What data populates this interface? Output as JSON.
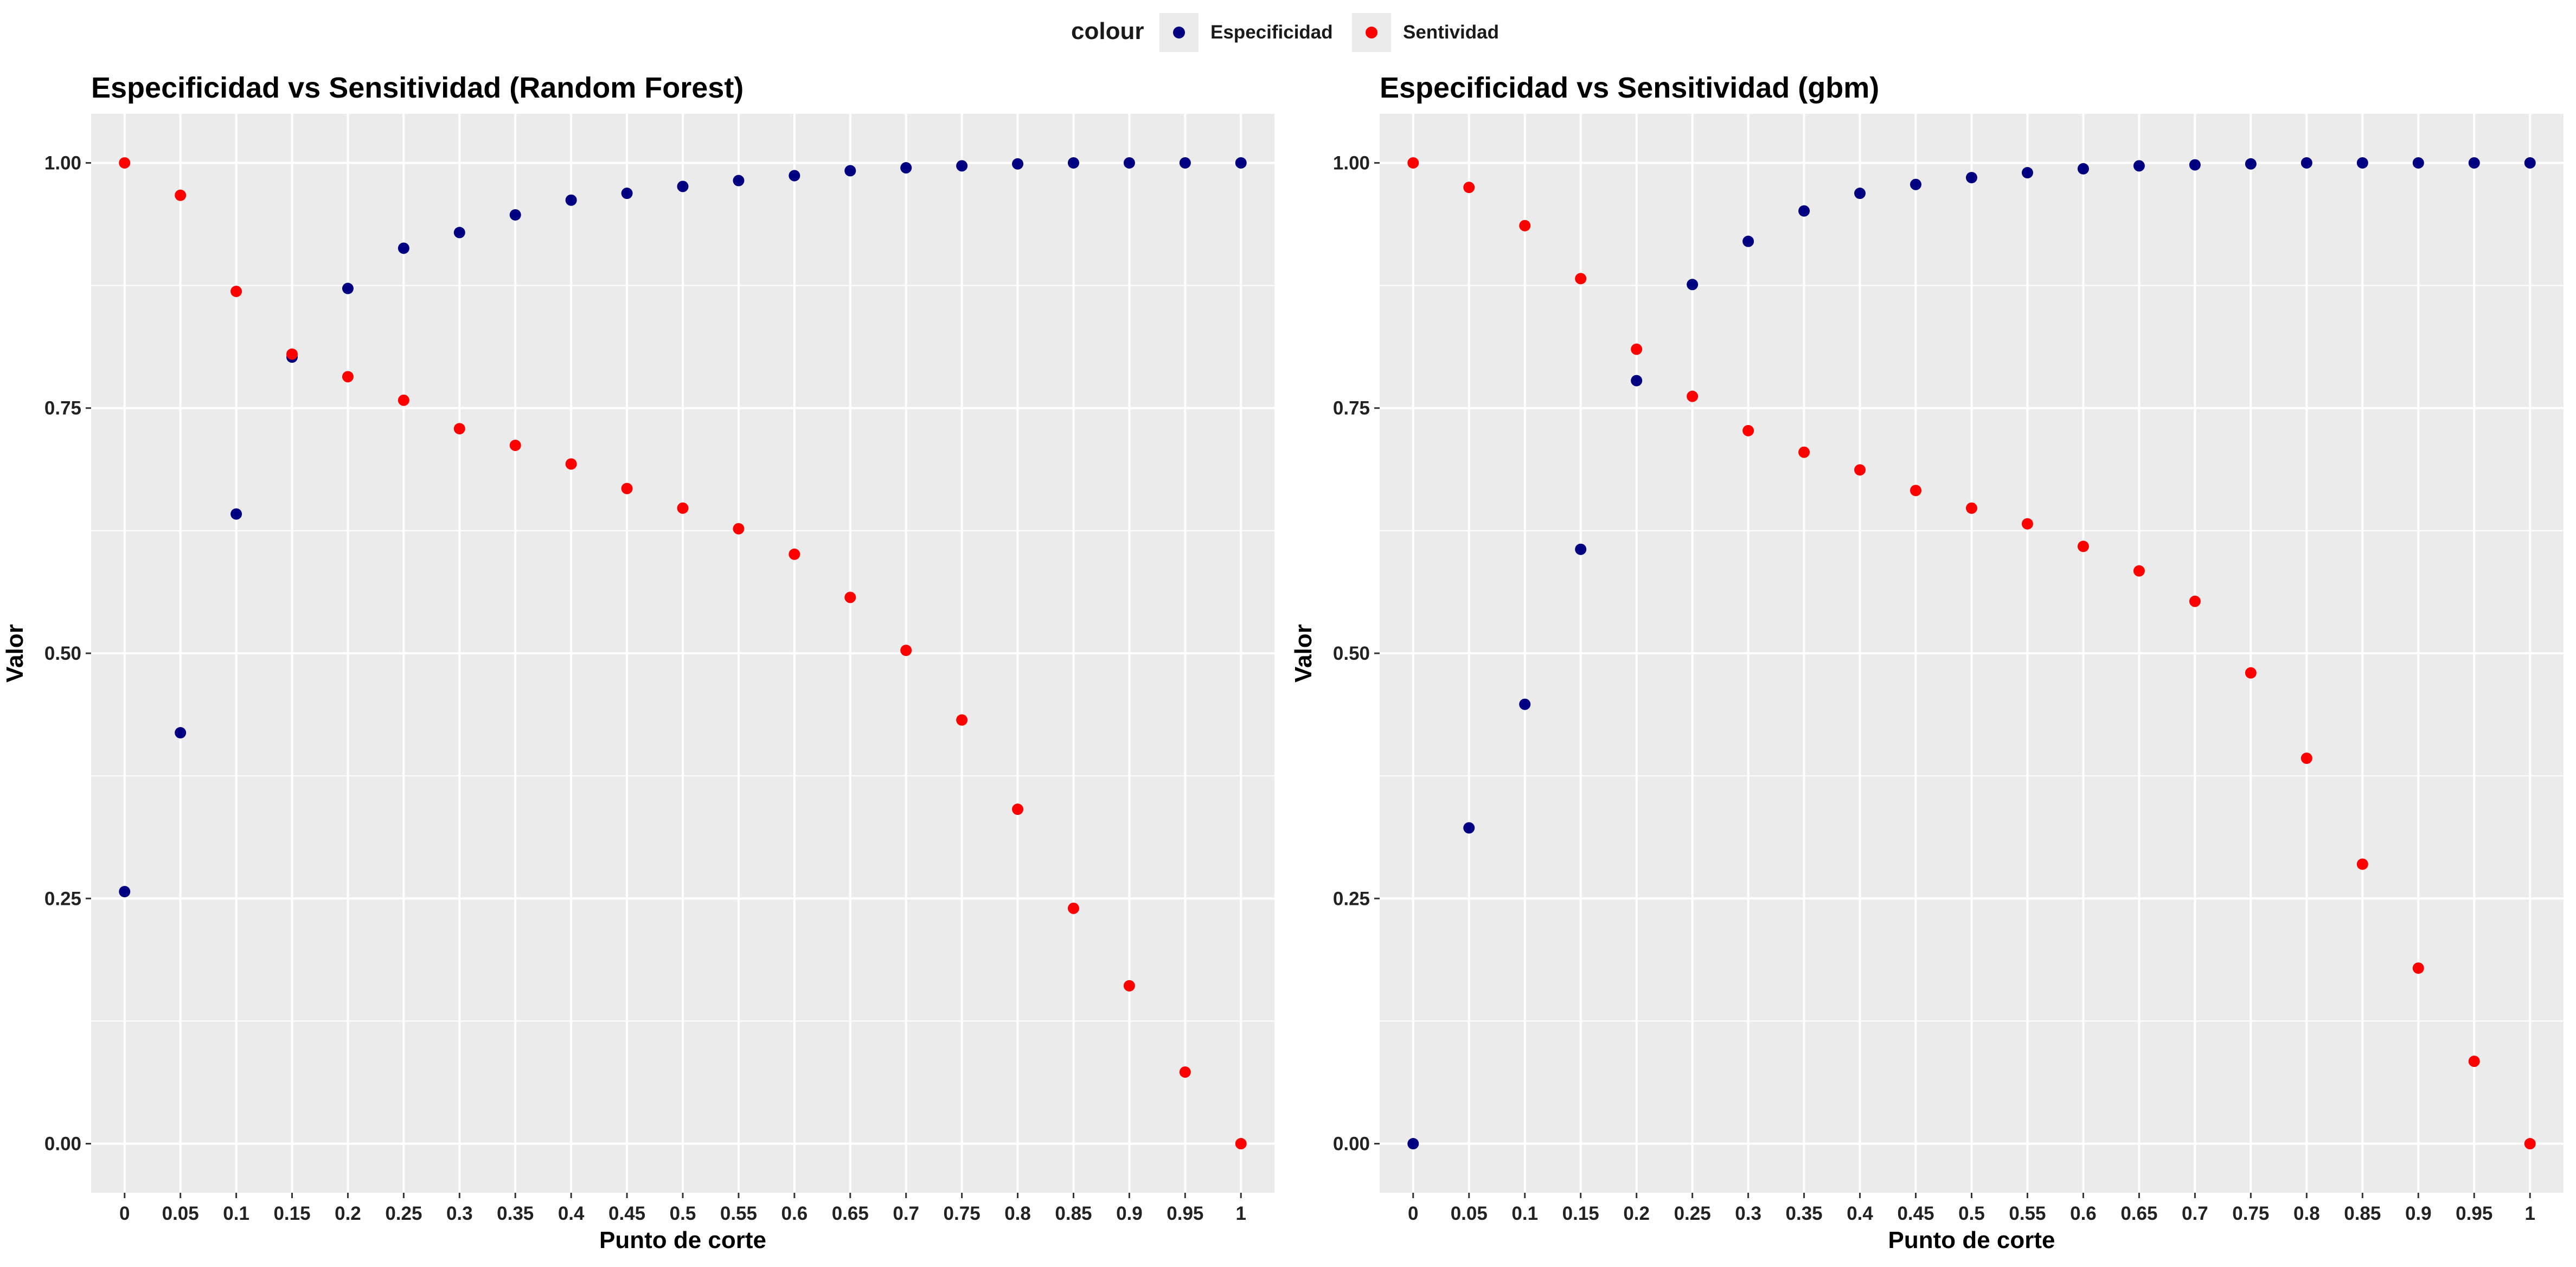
{
  "legend": {
    "title": "colour",
    "items": [
      {
        "label": "Especificidad",
        "color": "#000080"
      },
      {
        "label": "Sentividad",
        "color": "#FF0000"
      }
    ]
  },
  "chart_data": [
    {
      "type": "scatter",
      "title": "Especificidad vs Sensitividad (Random Forest)",
      "xlabel": "Punto de corte",
      "ylabel": "Valor",
      "x": [
        "0",
        "0.05",
        "0.1",
        "0.15",
        "0.2",
        "0.25",
        "0.3",
        "0.35",
        "0.4",
        "0.45",
        "0.5",
        "0.55",
        "0.6",
        "0.65",
        "0.7",
        "0.75",
        "0.8",
        "0.85",
        "0.9",
        "0.95",
        "1"
      ],
      "ylim": [
        -0.05,
        1.05
      ],
      "yticks": [
        "0.00",
        "0.25",
        "0.50",
        "0.75",
        "1.00"
      ],
      "series": [
        {
          "name": "Especificidad",
          "color": "#000080",
          "values": [
            0.257,
            0.419,
            0.642,
            0.802,
            0.872,
            0.913,
            0.929,
            0.947,
            0.962,
            0.969,
            0.976,
            0.982,
            0.987,
            0.992,
            0.995,
            0.997,
            0.999,
            1.0,
            1.0,
            1.0,
            1.0
          ]
        },
        {
          "name": "Sentividad",
          "color": "#FF0000",
          "values": [
            1.0,
            0.967,
            0.869,
            0.805,
            0.782,
            0.758,
            0.729,
            0.712,
            0.693,
            0.668,
            0.648,
            0.627,
            0.601,
            0.557,
            0.503,
            0.432,
            0.341,
            0.24,
            0.161,
            0.073,
            0.0
          ]
        }
      ],
      "grid": true,
      "legend_position": "top"
    },
    {
      "type": "scatter",
      "title": "Especificidad vs Sensitividad (gbm)",
      "xlabel": "Punto de corte",
      "ylabel": "Valor",
      "x": [
        "0",
        "0.05",
        "0.1",
        "0.15",
        "0.2",
        "0.25",
        "0.3",
        "0.35",
        "0.4",
        "0.45",
        "0.5",
        "0.55",
        "0.6",
        "0.65",
        "0.7",
        "0.75",
        "0.8",
        "0.85",
        "0.9",
        "0.95",
        "1"
      ],
      "ylim": [
        -0.05,
        1.05
      ],
      "yticks": [
        "0.00",
        "0.25",
        "0.50",
        "0.75",
        "1.00"
      ],
      "series": [
        {
          "name": "Especificidad",
          "color": "#000080",
          "values": [
            0.0,
            0.322,
            0.448,
            0.606,
            0.778,
            0.876,
            0.92,
            0.951,
            0.969,
            0.978,
            0.985,
            0.99,
            0.994,
            0.997,
            0.998,
            0.999,
            1.0,
            1.0,
            1.0,
            1.0,
            1.0
          ]
        },
        {
          "name": "Sentividad",
          "color": "#FF0000",
          "values": [
            1.0,
            0.975,
            0.936,
            0.882,
            0.81,
            0.762,
            0.727,
            0.705,
            0.687,
            0.666,
            0.648,
            0.632,
            0.609,
            0.584,
            0.553,
            0.48,
            0.393,
            0.285,
            0.179,
            0.084,
            0.0
          ]
        }
      ],
      "grid": true,
      "legend_position": "top"
    }
  ]
}
